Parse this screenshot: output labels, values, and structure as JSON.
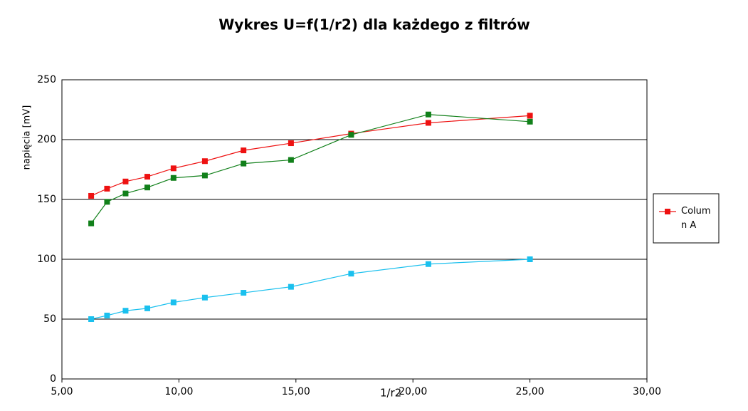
{
  "chart_data": {
    "type": "line",
    "title": "Wykres U=f(1/r2) dla każdego z filtrów",
    "x_label": "1/r2",
    "y_label": "napięcia [mV]",
    "x": [
      6.25,
      6.93,
      7.72,
      8.65,
      9.77,
      11.11,
      12.76,
      14.79,
      17.36,
      20.66,
      25.0
    ],
    "series": [
      {
        "name": "Column A",
        "color": "#ee1111",
        "values": [
          153,
          159,
          165,
          169,
          176,
          182,
          191,
          197,
          205,
          214,
          220
        ]
      },
      {
        "color": "#11801a",
        "values": [
          130,
          148,
          155,
          160,
          168,
          170,
          180,
          183,
          204,
          221,
          215
        ]
      },
      {
        "color": "#1ac0ee",
        "values": [
          50,
          53,
          57,
          59,
          64,
          68,
          72,
          77,
          88,
          96,
          100
        ]
      }
    ],
    "xlim": [
      5,
      30
    ],
    "xticks": [
      {
        "value": 5,
        "label": "5,00"
      },
      {
        "value": 10,
        "label": "10,00"
      },
      {
        "value": 15,
        "label": "15,00"
      },
      {
        "value": 20,
        "label": "20,00"
      },
      {
        "value": 25,
        "label": "25,00"
      },
      {
        "value": 30,
        "label": "30,00"
      }
    ],
    "ylim": [
      0,
      250
    ],
    "yticks": [
      0,
      50,
      100,
      150,
      200,
      250
    ],
    "grid": true
  }
}
